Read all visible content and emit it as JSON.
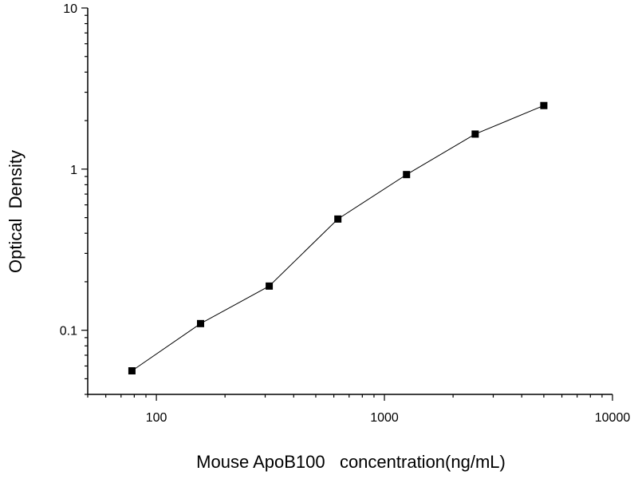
{
  "chart_data": {
    "type": "scatter",
    "title": "",
    "xlabel": "Mouse ApoB100   concentration(ng/mL)",
    "ylabel": "Optical  Density",
    "x_scale": "log",
    "y_scale": "log",
    "xlim": [
      50,
      10000
    ],
    "ylim": [
      0.04,
      10
    ],
    "x_ticks": [
      {
        "value": 100,
        "label": "100"
      },
      {
        "value": 1000,
        "label": "1000"
      },
      {
        "value": 10000,
        "label": "10000"
      }
    ],
    "y_ticks": [
      {
        "value": 0.1,
        "label": "0.1"
      },
      {
        "value": 1,
        "label": "1"
      },
      {
        "value": 10,
        "label": "10"
      }
    ],
    "grid": false,
    "legend": "none",
    "series": [
      {
        "x": [
          78.125,
          156.25,
          312.5,
          625,
          1250,
          2500,
          5000
        ],
        "y": [
          0.056,
          0.11,
          0.188,
          0.49,
          0.925,
          1.65,
          2.48
        ],
        "connected": true,
        "marker": "square",
        "color": "#000000"
      }
    ]
  }
}
